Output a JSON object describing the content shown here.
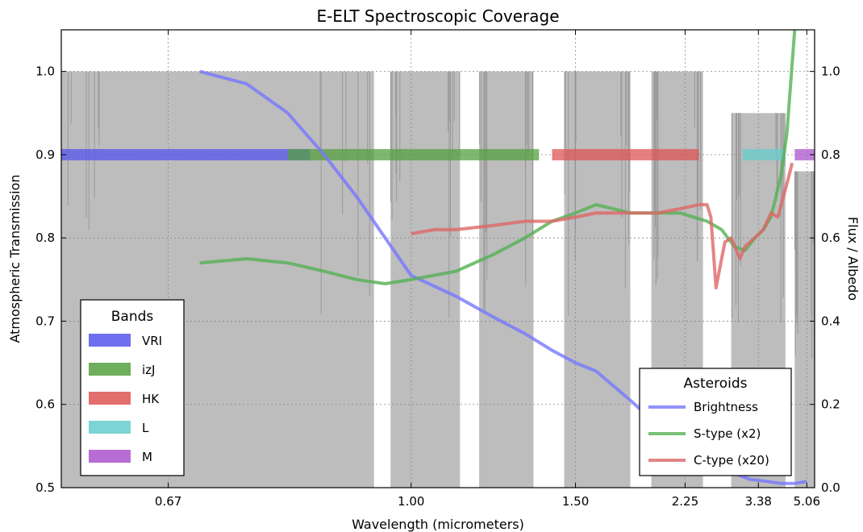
{
  "chart_data": {
    "type": "line",
    "title": "E-ELT Spectroscopic Coverage",
    "xlabel": "Wavelength (micrometers)",
    "ylabel_left": "Atmospheric Transmission",
    "ylabel_right": "Flux / Albedo",
    "x_scale": "reciprocal",
    "xlim": [
      0.585,
      5.5
    ],
    "x_ticks": [
      {
        "value": 0.67,
        "label": "0.67"
      },
      {
        "value": 1.0,
        "label": "1.00"
      },
      {
        "value": 1.5,
        "label": "1.50"
      },
      {
        "value": 2.25,
        "label": "2.25"
      },
      {
        "value": 3.38,
        "label": "3.38"
      },
      {
        "value": 5.06,
        "label": "5.06"
      }
    ],
    "ylim_left": [
      0.5,
      1.05
    ],
    "y_ticks_left": [
      {
        "value": 0.5,
        "label": "0.5"
      },
      {
        "value": 0.6,
        "label": "0.6"
      },
      {
        "value": 0.7,
        "label": "0.7"
      },
      {
        "value": 0.8,
        "label": "0.8"
      },
      {
        "value": 0.9,
        "label": "0.9"
      },
      {
        "value": 1.0,
        "label": "1.0"
      }
    ],
    "ylim_right": [
      0.0,
      1.1
    ],
    "y_ticks_right": [
      {
        "value": 0.0,
        "label": "0.0"
      },
      {
        "value": 0.2,
        "label": "0.2"
      },
      {
        "value": 0.4,
        "label": "0.4"
      },
      {
        "value": 0.6,
        "label": "0.6"
      },
      {
        "value": 0.8,
        "label": "0.8"
      },
      {
        "value": 1.0,
        "label": "1.0"
      }
    ],
    "grid": true,
    "transmission_windows": [
      {
        "range": [
          0.585,
          0.93
        ],
        "level": 1.0
      },
      {
        "range": [
          0.96,
          1.11
        ],
        "level": 1.0
      },
      {
        "range": [
          1.16,
          1.33
        ],
        "level": 1.0
      },
      {
        "range": [
          1.45,
          1.8
        ],
        "level": 1.0
      },
      {
        "range": [
          1.95,
          2.45
        ],
        "level": 1.0
      },
      {
        "range": [
          2.85,
          4.15
        ],
        "level": 0.95
      },
      {
        "range": [
          4.5,
          5.5
        ],
        "level": 0.88
      }
    ],
    "bands_legend": {
      "title": "Bands",
      "placement": "lower-left",
      "items": [
        {
          "name": "VRI",
          "color": "#5555ee",
          "range": [
            0.585,
            0.83
          ]
        },
        {
          "name": "izJ",
          "color": "#55a040",
          "range": [
            0.8,
            1.35
          ]
        },
        {
          "name": "HK",
          "color": "#dd5555",
          "range": [
            1.4,
            2.4
          ]
        },
        {
          "name": "L",
          "color": "#66cccc",
          "range": [
            3.05,
            4.1
          ]
        },
        {
          "name": "M",
          "color": "#aa55cc",
          "range": [
            4.5,
            5.5
          ]
        }
      ]
    },
    "asteroids_legend": {
      "title": "Asteroids",
      "placement": "lower-right",
      "series": [
        {
          "name": "Brightness",
          "color": "#7777ff",
          "axis": "right",
          "x": [
            0.7,
            0.75,
            0.8,
            0.85,
            0.9,
            0.95,
            1.0,
            1.1,
            1.2,
            1.3,
            1.4,
            1.5,
            1.6,
            1.8,
            2.0,
            2.2,
            2.5,
            2.8,
            3.2,
            3.6,
            4.0,
            4.5,
            5.06
          ],
          "y": [
            1.0,
            0.97,
            0.9,
            0.8,
            0.7,
            0.6,
            0.51,
            0.46,
            0.41,
            0.37,
            0.33,
            0.3,
            0.28,
            0.21,
            0.15,
            0.11,
            0.07,
            0.04,
            0.02,
            0.015,
            0.01,
            0.01,
            0.015
          ]
        },
        {
          "name": "S-type (x2)",
          "color": "#55b055",
          "axis": "right",
          "x": [
            0.7,
            0.75,
            0.8,
            0.85,
            0.9,
            0.95,
            1.0,
            1.1,
            1.2,
            1.3,
            1.4,
            1.5,
            1.6,
            1.8,
            2.0,
            2.2,
            2.5,
            2.7,
            2.9,
            3.1,
            3.3,
            3.5,
            3.7,
            4.0,
            4.2,
            4.5
          ],
          "y": [
            0.54,
            0.55,
            0.54,
            0.52,
            0.5,
            0.49,
            0.5,
            0.52,
            0.56,
            0.6,
            0.64,
            0.66,
            0.68,
            0.66,
            0.66,
            0.66,
            0.64,
            0.62,
            0.58,
            0.57,
            0.6,
            0.62,
            0.65,
            0.75,
            0.85,
            1.1
          ]
        },
        {
          "name": "C-type (x20)",
          "color": "#dd6666",
          "axis": "right",
          "x": [
            1.0,
            1.05,
            1.1,
            1.2,
            1.3,
            1.4,
            1.5,
            1.6,
            1.8,
            2.0,
            2.2,
            2.4,
            2.5,
            2.55,
            2.62,
            2.7,
            2.75,
            2.85,
            3.0,
            3.1,
            3.2,
            3.5,
            3.7,
            3.9,
            4.2,
            4.4
          ],
          "y": [
            0.61,
            0.62,
            0.62,
            0.63,
            0.64,
            0.64,
            0.65,
            0.66,
            0.66,
            0.66,
            0.67,
            0.68,
            0.68,
            0.65,
            0.48,
            0.55,
            0.59,
            0.6,
            0.55,
            0.58,
            0.59,
            0.62,
            0.66,
            0.65,
            0.73,
            0.78
          ]
        }
      ]
    }
  }
}
